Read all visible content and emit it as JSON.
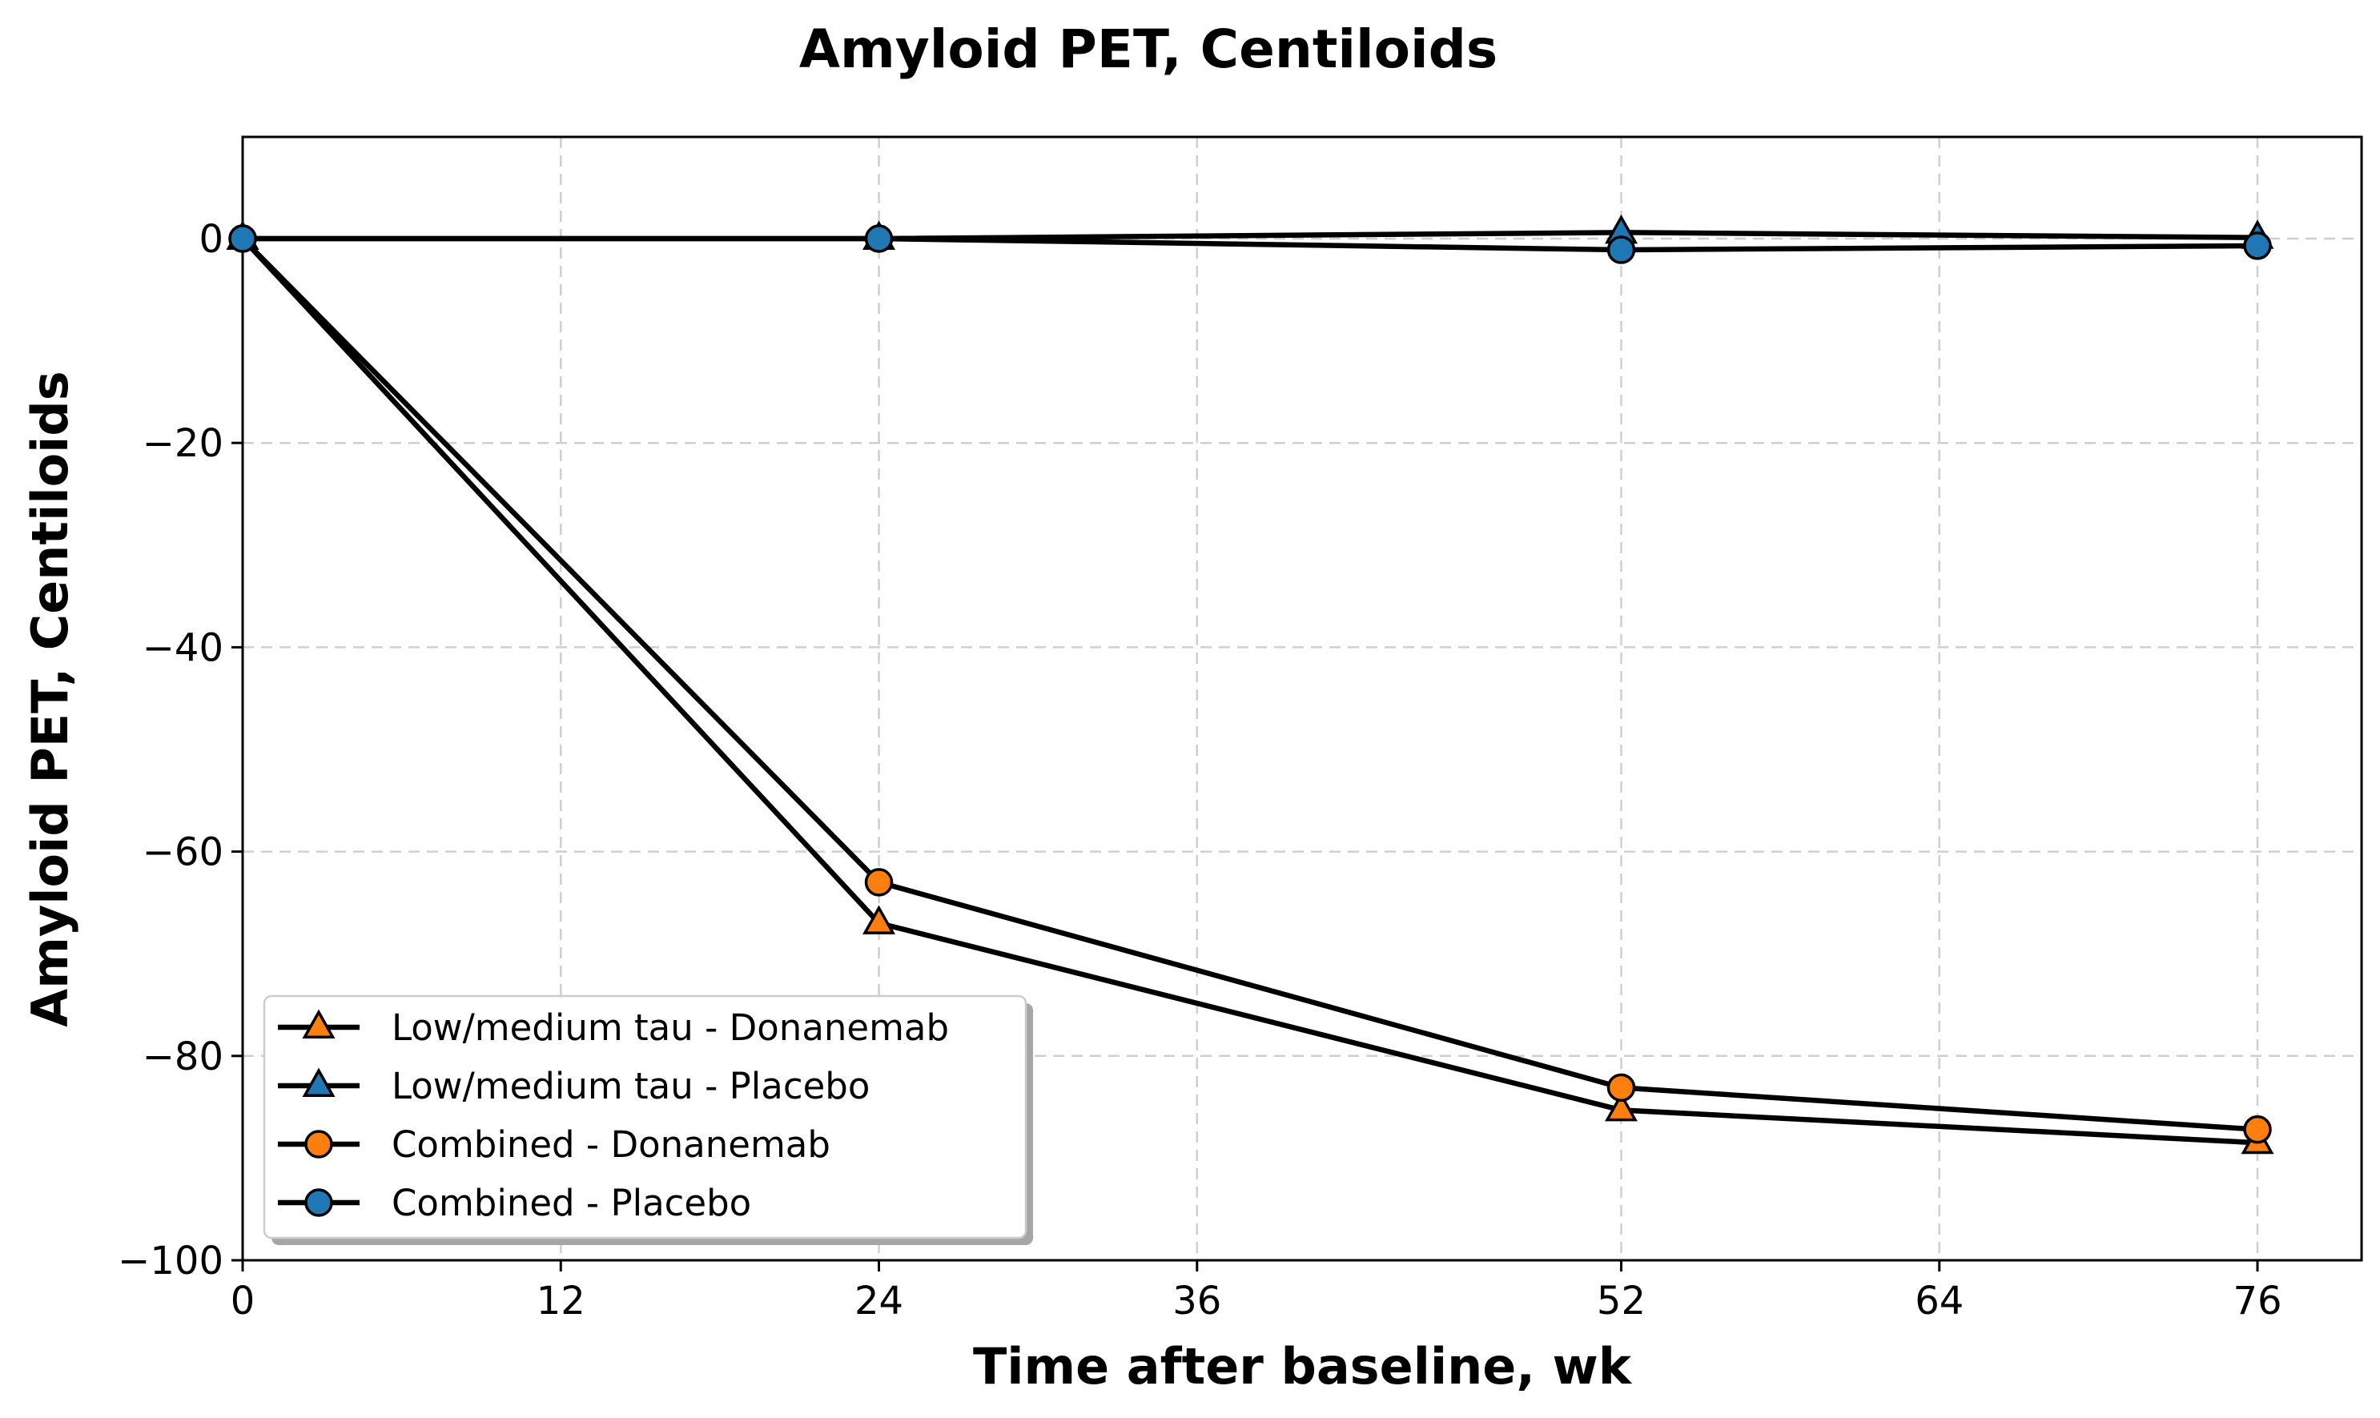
{
  "chart_data": {
    "type": "line",
    "title": "Amyloid PET, Centiloids",
    "xlabel": "Time after baseline, wk",
    "ylabel": "Amyloid PET, Centiloids",
    "xlim": [
      0,
      80
    ],
    "ylim": [
      -100,
      10
    ],
    "xticks": [
      0,
      12,
      24,
      36,
      52,
      64,
      76
    ],
    "xtick_labels": [
      "0",
      "12",
      "24",
      "36",
      "52",
      "64",
      "76"
    ],
    "yticks": [
      0,
      -20,
      -40,
      -60,
      -80,
      -100
    ],
    "ytick_labels": [
      "0",
      "−20",
      "−40",
      "−60",
      "−80",
      "−100"
    ],
    "grid": true,
    "legend_position": "lower-left",
    "series": [
      {
        "name": "Low/medium tau - Donanemab",
        "marker": "triangle",
        "color": "#ff7f0e",
        "x": [
          0,
          24,
          52,
          76
        ],
        "y": [
          0,
          -67,
          -85.3,
          -88.5
        ]
      },
      {
        "name": "Low/medium tau - Placebo",
        "marker": "triangle",
        "color": "#1f77b4",
        "x": [
          0,
          24,
          52,
          76
        ],
        "y": [
          0,
          0,
          0.6,
          0.1
        ]
      },
      {
        "name": "Combined - Donanemab",
        "marker": "circle",
        "color": "#ff7f0e",
        "x": [
          0,
          24,
          52,
          76
        ],
        "y": [
          0,
          -63,
          -83.1,
          -87.2
        ]
      },
      {
        "name": "Combined - Placebo",
        "marker": "circle",
        "color": "#1f77b4",
        "x": [
          0,
          24,
          52,
          76
        ],
        "y": [
          0,
          0,
          -1.1,
          -0.7
        ]
      }
    ]
  }
}
